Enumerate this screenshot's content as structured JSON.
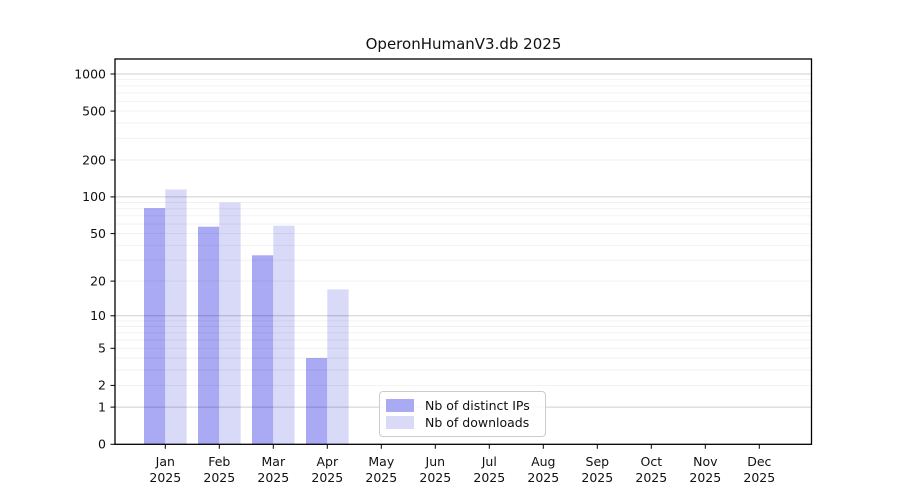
{
  "figure_title": "OperonHumanV3.db 2025",
  "chart_data": {
    "type": "bar",
    "title": "OperonHumanV3.db 2025",
    "categories": [
      "Jan",
      "Feb",
      "Mar",
      "Apr",
      "May",
      "Jun",
      "Jul",
      "Aug",
      "Sep",
      "Oct",
      "Nov",
      "Dec"
    ],
    "x_year": "2025",
    "series": [
      {
        "name": "Nb of distinct IPs",
        "color": "#a9a9f4",
        "values": [
          81,
          57,
          33,
          4,
          0,
          0,
          0,
          0,
          0,
          0,
          0,
          0
        ]
      },
      {
        "name": "Nb of downloads",
        "color": "#d9d9f8",
        "values": [
          115,
          90,
          58,
          17,
          0,
          0,
          0,
          0,
          0,
          0,
          0,
          0
        ]
      }
    ],
    "yscale": "log1p",
    "ylim": [
      0,
      1000
    ],
    "y_ticks": [
      0,
      1,
      2,
      5,
      10,
      20,
      50,
      100,
      200,
      500,
      1000
    ],
    "major_grid_values": [
      1,
      10,
      100,
      1000
    ],
    "grid": "on",
    "legend_position": "lower center",
    "background_color": "#ffffff",
    "frame_color": "#000000"
  }
}
